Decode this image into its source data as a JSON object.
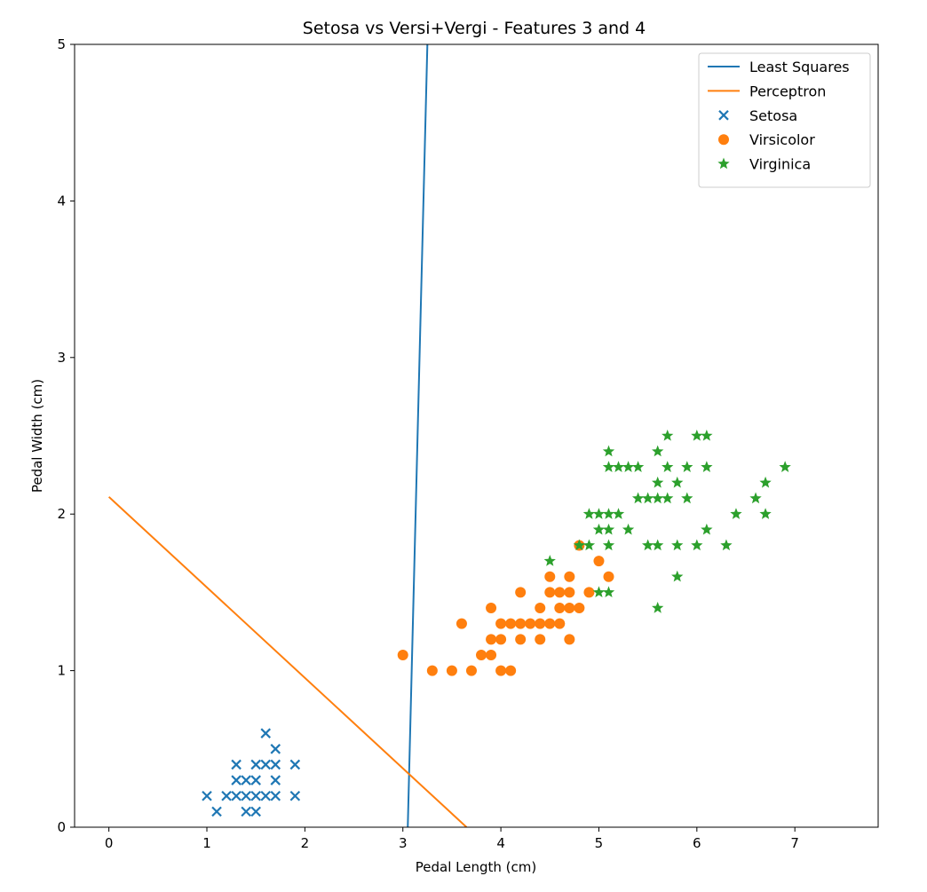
{
  "chart_data": {
    "type": "scatter",
    "title": "Setosa vs Versi+Vergi - Features 3 and 4",
    "xlabel": "Pedal Length (cm)",
    "ylabel": "Pedal Width (cm)",
    "xlim": [
      -0.35,
      7.85
    ],
    "ylim": [
      0,
      5
    ],
    "xticks": [
      "0",
      "1",
      "2",
      "3",
      "4",
      "5",
      "6",
      "7"
    ],
    "yticks": [
      "0",
      "1",
      "2",
      "3",
      "4",
      "5"
    ],
    "grid": false,
    "legend_position": "top-right",
    "lines": [
      {
        "name": "Least Squares",
        "color": "#1f77b4",
        "points": [
          [
            3.05,
            0.0
          ],
          [
            3.25,
            5.0
          ]
        ]
      },
      {
        "name": "Perceptron",
        "color": "#ff7f0e",
        "points": [
          [
            0.0,
            2.11
          ],
          [
            3.65,
            0.0
          ]
        ]
      }
    ],
    "series": [
      {
        "name": "Setosa",
        "marker": "x",
        "color": "#1f77b4",
        "points": [
          [
            1.0,
            0.2
          ],
          [
            1.1,
            0.1
          ],
          [
            1.2,
            0.2
          ],
          [
            1.3,
            0.2
          ],
          [
            1.3,
            0.3
          ],
          [
            1.3,
            0.4
          ],
          [
            1.4,
            0.1
          ],
          [
            1.4,
            0.2
          ],
          [
            1.4,
            0.3
          ],
          [
            1.5,
            0.1
          ],
          [
            1.5,
            0.2
          ],
          [
            1.5,
            0.3
          ],
          [
            1.5,
            0.4
          ],
          [
            1.6,
            0.2
          ],
          [
            1.6,
            0.4
          ],
          [
            1.6,
            0.6
          ],
          [
            1.7,
            0.2
          ],
          [
            1.7,
            0.3
          ],
          [
            1.7,
            0.4
          ],
          [
            1.7,
            0.5
          ],
          [
            1.9,
            0.2
          ],
          [
            1.9,
            0.4
          ]
        ]
      },
      {
        "name": "Virsicolor",
        "marker": "o",
        "color": "#ff7f0e",
        "points": [
          [
            3.0,
            1.1
          ],
          [
            3.3,
            1.0
          ],
          [
            3.5,
            1.0
          ],
          [
            3.6,
            1.3
          ],
          [
            3.7,
            1.0
          ],
          [
            3.8,
            1.1
          ],
          [
            3.9,
            1.1
          ],
          [
            3.9,
            1.2
          ],
          [
            3.9,
            1.4
          ],
          [
            4.0,
            1.0
          ],
          [
            4.0,
            1.2
          ],
          [
            4.0,
            1.3
          ],
          [
            4.1,
            1.0
          ],
          [
            4.1,
            1.3
          ],
          [
            4.2,
            1.2
          ],
          [
            4.2,
            1.3
          ],
          [
            4.2,
            1.5
          ],
          [
            4.3,
            1.3
          ],
          [
            4.4,
            1.2
          ],
          [
            4.4,
            1.3
          ],
          [
            4.4,
            1.4
          ],
          [
            4.5,
            1.3
          ],
          [
            4.5,
            1.5
          ],
          [
            4.5,
            1.6
          ],
          [
            4.6,
            1.3
          ],
          [
            4.6,
            1.4
          ],
          [
            4.6,
            1.5
          ],
          [
            4.7,
            1.2
          ],
          [
            4.7,
            1.4
          ],
          [
            4.7,
            1.5
          ],
          [
            4.7,
            1.6
          ],
          [
            4.8,
            1.4
          ],
          [
            4.8,
            1.8
          ],
          [
            4.9,
            1.5
          ],
          [
            5.0,
            1.7
          ],
          [
            5.1,
            1.6
          ]
        ]
      },
      {
        "name": "Virginica",
        "marker": "*",
        "color": "#2ca02c",
        "points": [
          [
            4.5,
            1.7
          ],
          [
            4.8,
            1.8
          ],
          [
            4.9,
            1.8
          ],
          [
            4.9,
            2.0
          ],
          [
            5.0,
            1.5
          ],
          [
            5.0,
            1.9
          ],
          [
            5.0,
            2.0
          ],
          [
            5.1,
            1.5
          ],
          [
            5.1,
            1.8
          ],
          [
            5.1,
            1.9
          ],
          [
            5.1,
            2.0
          ],
          [
            5.1,
            2.3
          ],
          [
            5.1,
            2.4
          ],
          [
            5.2,
            2.0
          ],
          [
            5.2,
            2.3
          ],
          [
            5.3,
            1.9
          ],
          [
            5.3,
            2.3
          ],
          [
            5.4,
            2.1
          ],
          [
            5.4,
            2.3
          ],
          [
            5.5,
            1.8
          ],
          [
            5.5,
            2.1
          ],
          [
            5.6,
            1.4
          ],
          [
            5.6,
            1.8
          ],
          [
            5.6,
            2.1
          ],
          [
            5.6,
            2.2
          ],
          [
            5.6,
            2.4
          ],
          [
            5.7,
            2.1
          ],
          [
            5.7,
            2.3
          ],
          [
            5.7,
            2.5
          ],
          [
            5.8,
            1.6
          ],
          [
            5.8,
            1.8
          ],
          [
            5.8,
            2.2
          ],
          [
            5.9,
            2.1
          ],
          [
            5.9,
            2.3
          ],
          [
            6.0,
            1.8
          ],
          [
            6.0,
            2.5
          ],
          [
            6.1,
            1.9
          ],
          [
            6.1,
            2.3
          ],
          [
            6.1,
            2.5
          ],
          [
            6.3,
            1.8
          ],
          [
            6.4,
            2.0
          ],
          [
            6.6,
            2.1
          ],
          [
            6.7,
            2.0
          ],
          [
            6.7,
            2.2
          ],
          [
            6.9,
            2.3
          ]
        ]
      }
    ]
  }
}
